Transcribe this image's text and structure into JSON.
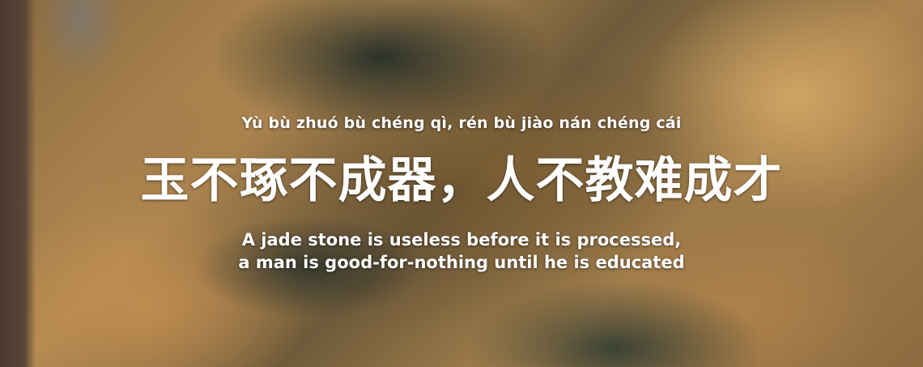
{
  "quote": {
    "pinyin": "Yù bù zhuó bù chéng qì, rén bù jiào nán chéng cái",
    "chinese": "玉不琢不成器，人不教难成才",
    "english_line1": "A jade stone is useless before it is processed,",
    "english_line2": "a man is good-for-nothing until he is educated"
  },
  "colors": {
    "text": "#ffffff",
    "jade_dark": "#2b3a34",
    "ochre": "#b38a52"
  }
}
